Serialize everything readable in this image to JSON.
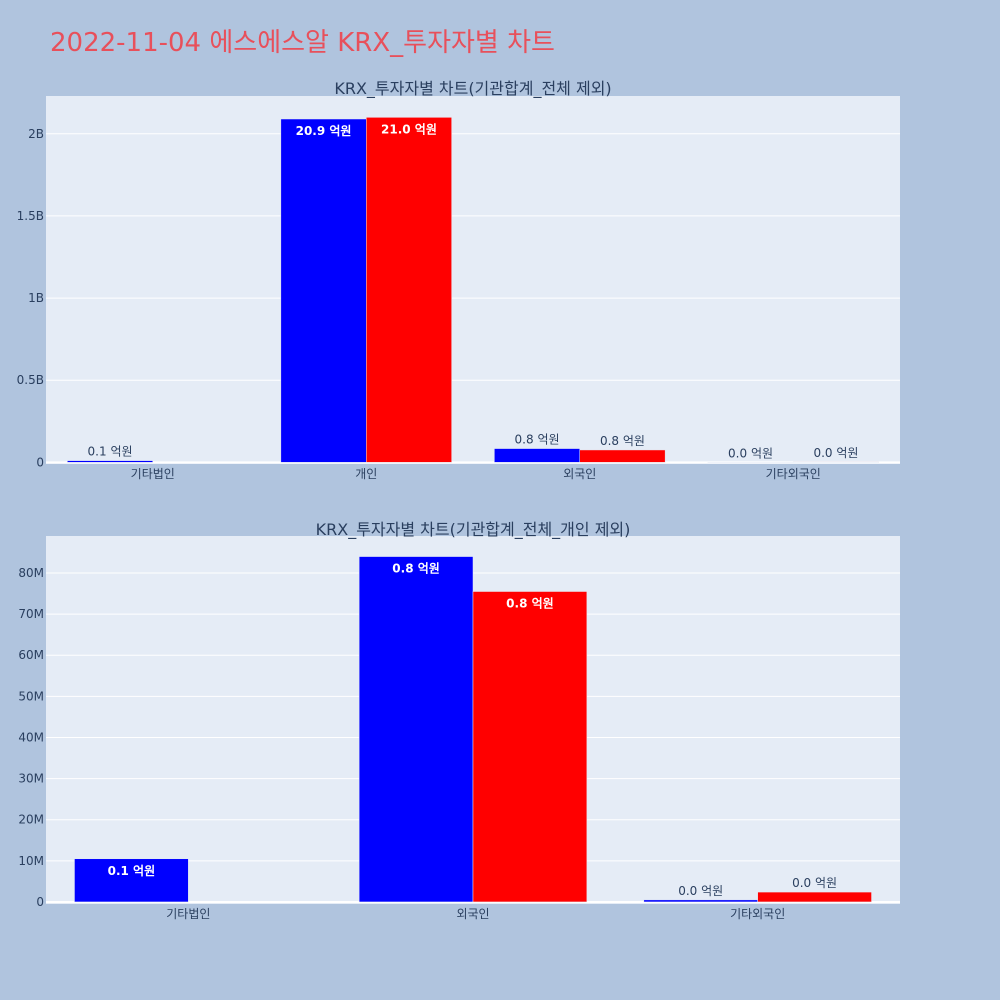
{
  "page": {
    "title": "2022-11-04 에스에스알 KRX_투자자별 차트",
    "title_color": "#e8505b",
    "background": "#b0c4de",
    "plot_background": "#e5ecf6"
  },
  "chart_data": [
    {
      "type": "bar",
      "title": "KRX_투자자별 차트(기관합계_전체 제외)",
      "categories": [
        "기타법인",
        "개인",
        "외국인",
        "기타외국인"
      ],
      "series": [
        {
          "color": "#0000ff",
          "values": [
            10500000,
            2090000000,
            84000000,
            500000
          ],
          "labels": [
            "0.1 억원",
            "20.9 억원",
            "0.8 억원",
            "0.0 억원"
          ]
        },
        {
          "color": "#ff0000",
          "values": [
            0,
            2100000000,
            75500000,
            2400000
          ],
          "labels": [
            "",
            "21.0 억원",
            "0.8 억원",
            "0.0 억원"
          ]
        }
      ],
      "yticks": [
        0,
        500000000,
        1000000000,
        1500000000,
        2000000000
      ],
      "ytick_labels": [
        "0",
        "0.5B",
        "1B",
        "1.5B",
        "2B"
      ],
      "ylim": [
        -10000000,
        2230000000
      ],
      "grid": true,
      "xlabel": "",
      "ylabel": ""
    },
    {
      "type": "bar",
      "title": "KRX_투자자별 차트(기관합계_전체_개인 제외)",
      "categories": [
        "기타법인",
        "외국인",
        "기타외국인"
      ],
      "series": [
        {
          "color": "#0000ff",
          "values": [
            10500000,
            84000000,
            500000
          ],
          "labels": [
            "0.1 억원",
            "0.8 억원",
            "0.0 억원"
          ]
        },
        {
          "color": "#ff0000",
          "values": [
            0,
            75500000,
            2400000
          ],
          "labels": [
            "",
            "0.8 억원",
            "0.0 억원"
          ]
        }
      ],
      "yticks": [
        0,
        10000000,
        20000000,
        30000000,
        40000000,
        50000000,
        60000000,
        70000000,
        80000000
      ],
      "ytick_labels": [
        "0",
        "10M",
        "20M",
        "30M",
        "40M",
        "50M",
        "60M",
        "70M",
        "80M"
      ],
      "ylim": [
        -500000,
        89000000
      ],
      "grid": true,
      "xlabel": "",
      "ylabel": ""
    }
  ]
}
